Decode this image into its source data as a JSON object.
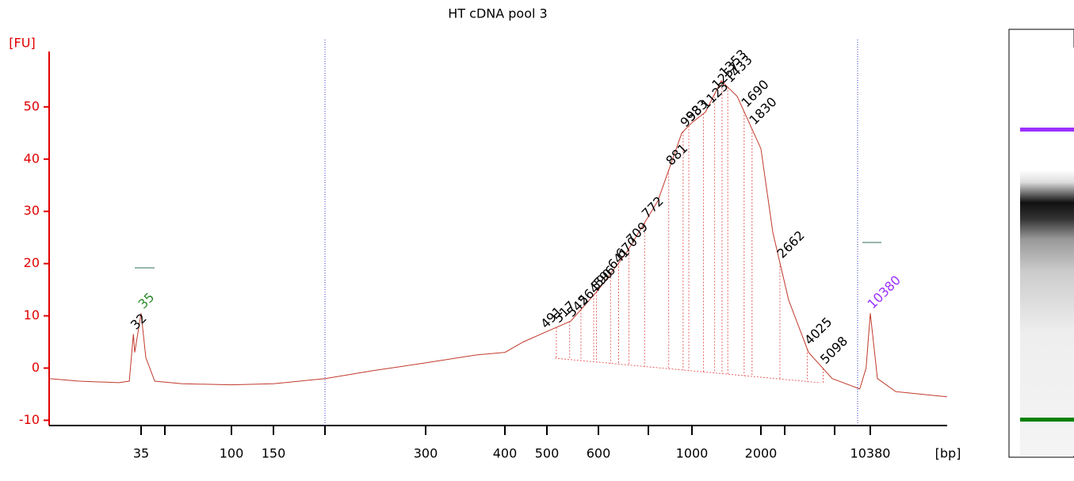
{
  "chart_data": {
    "type": "line",
    "title": "HT cDNA pool 3",
    "y_label": "[FU]",
    "x_label": "[bp]",
    "color": "#c0392b",
    "axis_color": "#e00000",
    "ylim": [
      -11,
      60.6
    ],
    "yticks": [
      -10,
      0,
      10,
      20,
      30,
      40,
      50
    ],
    "xticks": [
      35,
      100,
      150,
      300,
      400,
      500,
      600,
      1000,
      2000,
      10380
    ],
    "x": [
      12,
      17,
      27,
      30.5,
      32,
      32.5,
      35,
      37,
      41,
      56.5,
      100,
      150,
      190,
      236,
      300,
      360,
      400,
      441,
      500,
      544,
      600,
      698,
      830,
      946,
      1000,
      1145,
      1343,
      1576,
      2000,
      2392,
      3036,
      4097,
      5850,
      8860,
      9740,
      10380,
      11560,
      15200,
      32900
    ],
    "values": [
      -2,
      -2.5,
      -2.8,
      -2.5,
      6.5,
      3,
      10.5,
      2,
      -2.5,
      -3,
      -3.2,
      -3,
      -2,
      -0.5,
      1,
      2.5,
      3,
      5,
      7,
      9,
      15,
      22,
      32,
      45,
      47,
      49,
      55,
      52,
      42,
      26,
      13,
      3,
      -2,
      -4,
      0,
      10.5,
      -2,
      -4.5,
      -5.5
    ],
    "peaks": [
      32,
      491,
      517,
      542,
      564,
      590,
      596,
      641,
      670,
      709,
      772,
      881,
      953,
      983,
      1123,
      1257,
      1353,
      1433,
      1690,
      1830,
      2662,
      4025,
      5098
    ],
    "lower_marker": {
      "value": 35,
      "color": "#2e8b2e"
    },
    "upper_marker": {
      "value": 10380,
      "color": "#9b30ff"
    }
  }
}
